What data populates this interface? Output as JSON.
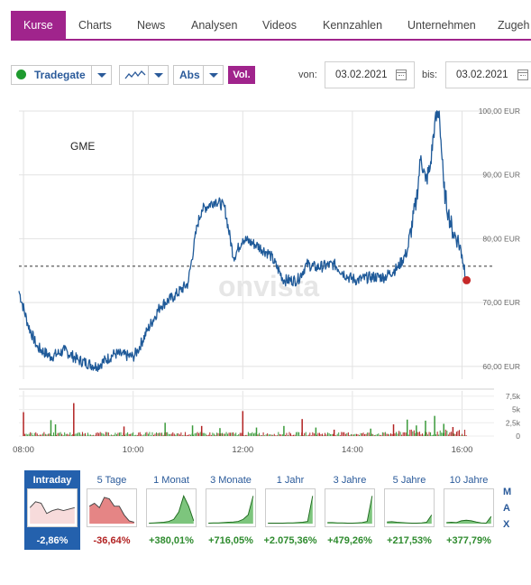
{
  "tabs": [
    "Kurse",
    "Charts",
    "News",
    "Analysen",
    "Videos",
    "Kennzahlen",
    "Unternehmen",
    "Zugeh"
  ],
  "toolbar": {
    "exchange": "Tradegate",
    "scale": "Abs",
    "volume": "Vol.",
    "from_label": "von:",
    "from_date": "03.02.2021",
    "to_label": "bis:",
    "to_date": "03.02.2021"
  },
  "icons": {
    "exchange_status": "green-circle-icon",
    "chart_type": "line-chart-icon",
    "calendar": "calendar-icon"
  },
  "colors": {
    "accent": "#a0248c",
    "line": "#1f5a99",
    "active_period": "#2461ad",
    "positive": "#2e8b2e",
    "negative": "#b22222",
    "volume_up": "#3a9a3a",
    "volume_down": "#b22222"
  },
  "watermark": "onvista",
  "chart_data": {
    "type": "line",
    "title": "GME",
    "currency": "EUR",
    "x": [
      "07:55",
      "08:05",
      "08:15",
      "08:30",
      "08:45",
      "09:00",
      "09:20",
      "09:40",
      "10:00",
      "10:05",
      "10:15",
      "10:30",
      "10:45",
      "11:00",
      "11:10",
      "11:15",
      "11:30",
      "11:40",
      "11:50",
      "12:00",
      "12:15",
      "12:30",
      "12:45",
      "13:00",
      "13:10",
      "13:20",
      "13:40",
      "13:55",
      "14:05",
      "14:20",
      "14:35",
      "14:50",
      "15:00",
      "15:10",
      "15:15",
      "15:20",
      "15:25",
      "15:30",
      "15:35",
      "15:40",
      "15:45",
      "15:50",
      "15:55",
      "16:00",
      "16:05"
    ],
    "y": [
      71.8,
      66.5,
      63.0,
      61.5,
      62.5,
      61.0,
      60.0,
      62.0,
      61.5,
      62.5,
      65.5,
      69.5,
      71.0,
      73.0,
      82.0,
      84.5,
      86.0,
      85.0,
      77.0,
      80.0,
      79.0,
      77.5,
      73.5,
      73.5,
      76.0,
      75.5,
      76.0,
      74.0,
      73.5,
      74.0,
      74.0,
      75.5,
      78.0,
      86.0,
      93.0,
      89.0,
      91.0,
      98.0,
      100.0,
      88.0,
      84.0,
      81.0,
      80.0,
      77.5,
      73.5
    ],
    "reference_price": 75.7,
    "last_price": 73.5,
    "ylim": [
      58,
      100
    ],
    "yticks": [
      "100,00 EUR",
      "90,00 EUR",
      "80,00 EUR",
      "70,00 EUR",
      "60,00 EUR"
    ],
    "xticks": [
      "08:00",
      "10:00",
      "12:00",
      "14:00",
      "16:00"
    ],
    "volume": {
      "ylim": [
        0,
        8500
      ],
      "yticks": [
        "7,5k",
        "5k",
        "2,5k",
        "0"
      ],
      "spikes": [
        {
          "t": "08:00",
          "v": 4500,
          "dir": "down"
        },
        {
          "t": "08:30",
          "v": 3000,
          "dir": "up"
        },
        {
          "t": "08:35",
          "v": 2200,
          "dir": "up"
        },
        {
          "t": "08:55",
          "v": 6200,
          "dir": "down"
        },
        {
          "t": "09:50",
          "v": 1800,
          "dir": "down"
        },
        {
          "t": "10:35",
          "v": 2500,
          "dir": "up"
        },
        {
          "t": "11:05",
          "v": 2000,
          "dir": "up"
        },
        {
          "t": "11:15",
          "v": 1900,
          "dir": "down"
        },
        {
          "t": "11:35",
          "v": 1500,
          "dir": "up"
        },
        {
          "t": "12:00",
          "v": 4700,
          "dir": "down"
        },
        {
          "t": "12:15",
          "v": 1600,
          "dir": "up"
        },
        {
          "t": "12:45",
          "v": 1900,
          "dir": "up"
        },
        {
          "t": "13:05",
          "v": 3200,
          "dir": "down"
        },
        {
          "t": "13:20",
          "v": 1600,
          "dir": "up"
        },
        {
          "t": "13:40",
          "v": 1200,
          "dir": "down"
        },
        {
          "t": "14:20",
          "v": 1400,
          "dir": "up"
        },
        {
          "t": "14:45",
          "v": 2200,
          "dir": "down"
        },
        {
          "t": "15:00",
          "v": 3100,
          "dir": "up"
        },
        {
          "t": "15:10",
          "v": 2000,
          "dir": "up"
        },
        {
          "t": "15:20",
          "v": 2900,
          "dir": "up"
        },
        {
          "t": "15:30",
          "v": 3800,
          "dir": "up"
        },
        {
          "t": "15:40",
          "v": 2300,
          "dir": "up"
        },
        {
          "t": "15:50",
          "v": 1700,
          "dir": "down"
        }
      ]
    }
  },
  "periods": [
    {
      "label": "Intraday",
      "change": "-2,86%",
      "active": true,
      "direction": "down",
      "shape": [
        0.55,
        0.75,
        0.7,
        0.35,
        0.45,
        0.5,
        0.45,
        0.5,
        0.55
      ]
    },
    {
      "label": "5 Tage",
      "change": "-36,64%",
      "active": false,
      "direction": "down",
      "shape": [
        0.6,
        0.7,
        0.55,
        0.9,
        0.85,
        0.6,
        0.6,
        0.3,
        0.1,
        0.05
      ]
    },
    {
      "label": "1 Monat",
      "change": "+380,01%",
      "active": false,
      "direction": "up",
      "shape": [
        0.02,
        0.03,
        0.04,
        0.05,
        0.08,
        0.15,
        0.4,
        0.95,
        0.6,
        0.1
      ]
    },
    {
      "label": "3 Monate",
      "change": "+716,05%",
      "active": false,
      "direction": "up",
      "shape": [
        0.02,
        0.03,
        0.03,
        0.04,
        0.05,
        0.06,
        0.08,
        0.15,
        0.3,
        0.95
      ]
    },
    {
      "label": "1 Jahr",
      "change": "+2.075,36%",
      "active": false,
      "direction": "up",
      "shape": [
        0.02,
        0.02,
        0.02,
        0.02,
        0.03,
        0.03,
        0.04,
        0.05,
        0.08,
        0.95
      ]
    },
    {
      "label": "3 Jahre",
      "change": "+479,26%",
      "active": false,
      "direction": "up",
      "shape": [
        0.04,
        0.04,
        0.03,
        0.03,
        0.02,
        0.02,
        0.03,
        0.04,
        0.08,
        0.95
      ]
    },
    {
      "label": "5 Jahre",
      "change": "+217,53%",
      "active": false,
      "direction": "up",
      "shape": [
        0.06,
        0.07,
        0.05,
        0.04,
        0.03,
        0.02,
        0.02,
        0.03,
        0.05,
        0.3
      ]
    },
    {
      "label": "10 Jahre",
      "change": "+377,79%",
      "active": false,
      "direction": "up",
      "shape": [
        0.04,
        0.05,
        0.04,
        0.1,
        0.12,
        0.1,
        0.06,
        0.03,
        0.02,
        0.25
      ]
    }
  ],
  "range_links": [
    "M",
    "A",
    "X"
  ]
}
